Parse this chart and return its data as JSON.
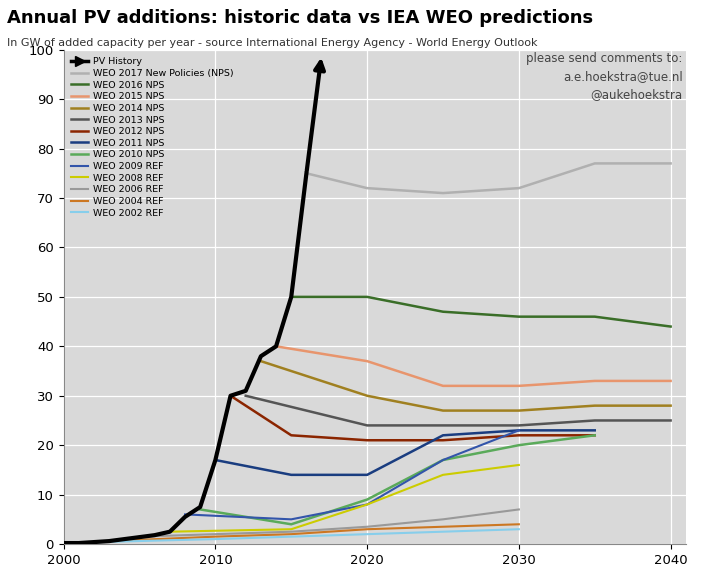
{
  "title": "Annual PV additions: historic data vs IEA WEO predictions",
  "subtitle": "In GW of added capacity per year - source International Energy Agency - World Energy Outlook",
  "annotation": "please send comments to:\na.e.hoekstra@tue.nl\n@aukehoekstra",
  "ylim": [
    0,
    100
  ],
  "xlim": [
    2000,
    2041
  ],
  "bg_color": "#d9d9d9",
  "fig_color": "#ffffff",
  "pv_history": {
    "label": "PV History",
    "color": "#000000",
    "lw": 3.0,
    "x": [
      2000,
      2001,
      2002,
      2003,
      2004,
      2005,
      2006,
      2007,
      2008,
      2009,
      2010,
      2011,
      2012,
      2013,
      2014,
      2015,
      2016,
      2017
    ],
    "y": [
      0.2,
      0.2,
      0.4,
      0.6,
      1.0,
      1.4,
      1.8,
      2.5,
      5.5,
      7.5,
      17,
      30,
      31,
      38,
      40,
      50,
      75,
      99
    ]
  },
  "series": [
    {
      "label": "WEO 2017 New Policies (NPS)",
      "color": "#b0b0b0",
      "lw": 1.8,
      "x": [
        2016,
        2020,
        2025,
        2030,
        2035,
        2040
      ],
      "y": [
        75,
        72,
        71,
        72,
        77,
        77
      ]
    },
    {
      "label": "WEO 2016 NPS",
      "color": "#3a6e28",
      "lw": 1.8,
      "x": [
        2015,
        2020,
        2025,
        2030,
        2035,
        2040
      ],
      "y": [
        50,
        50,
        47,
        46,
        46,
        44
      ]
    },
    {
      "label": "WEO 2015 NPS",
      "color": "#e8956d",
      "lw": 1.8,
      "x": [
        2014,
        2020,
        2025,
        2030,
        2035,
        2040
      ],
      "y": [
        40,
        37,
        32,
        32,
        33,
        33
      ]
    },
    {
      "label": "WEO 2014 NPS",
      "color": "#a08020",
      "lw": 1.8,
      "x": [
        2013,
        2020,
        2025,
        2030,
        2035,
        2040
      ],
      "y": [
        37,
        30,
        27,
        27,
        28,
        28
      ]
    },
    {
      "label": "WEO 2013 NPS",
      "color": "#555555",
      "lw": 1.8,
      "x": [
        2012,
        2020,
        2025,
        2030,
        2035,
        2040
      ],
      "y": [
        30,
        24,
        24,
        24,
        25,
        25
      ]
    },
    {
      "label": "WEO 2012 NPS",
      "color": "#8b2500",
      "lw": 1.8,
      "x": [
        2011,
        2015,
        2020,
        2025,
        2030,
        2035
      ],
      "y": [
        30,
        22,
        21,
        21,
        22,
        22
      ]
    },
    {
      "label": "WEO 2011 NPS",
      "color": "#1a3d80",
      "lw": 1.8,
      "x": [
        2010,
        2015,
        2020,
        2025,
        2030,
        2035
      ],
      "y": [
        17,
        14,
        14,
        22,
        23,
        23
      ]
    },
    {
      "label": "WEO 2010 NPS",
      "color": "#5aaa5a",
      "lw": 1.8,
      "x": [
        2009,
        2015,
        2020,
        2025,
        2030,
        2035
      ],
      "y": [
        7,
        4,
        9,
        17,
        20,
        22
      ]
    },
    {
      "label": "WEO 2009 REF",
      "color": "#3355aa",
      "lw": 1.5,
      "x": [
        2008,
        2015,
        2020,
        2025,
        2030
      ],
      "y": [
        6,
        5,
        8,
        17,
        23
      ]
    },
    {
      "label": "WEO 2008 REF",
      "color": "#cccc00",
      "lw": 1.5,
      "x": [
        2007,
        2015,
        2020,
        2025,
        2030
      ],
      "y": [
        2.5,
        3,
        8,
        14,
        16
      ]
    },
    {
      "label": "WEO 2006 REF",
      "color": "#999999",
      "lw": 1.5,
      "x": [
        2005,
        2010,
        2015,
        2020,
        2025,
        2030
      ],
      "y": [
        1.5,
        2,
        2.5,
        3.5,
        5,
        7
      ]
    },
    {
      "label": "WEO 2004 REF",
      "color": "#cc7722",
      "lw": 1.5,
      "x": [
        2003,
        2010,
        2015,
        2020,
        2025,
        2030
      ],
      "y": [
        0.6,
        1.5,
        2,
        3,
        3.5,
        4
      ]
    },
    {
      "label": "WEO 2002 REF",
      "color": "#87ceeb",
      "lw": 1.5,
      "x": [
        2001,
        2010,
        2015,
        2020,
        2025,
        2030
      ],
      "y": [
        0.3,
        1.0,
        1.5,
        2.0,
        2.5,
        3.0
      ]
    }
  ]
}
